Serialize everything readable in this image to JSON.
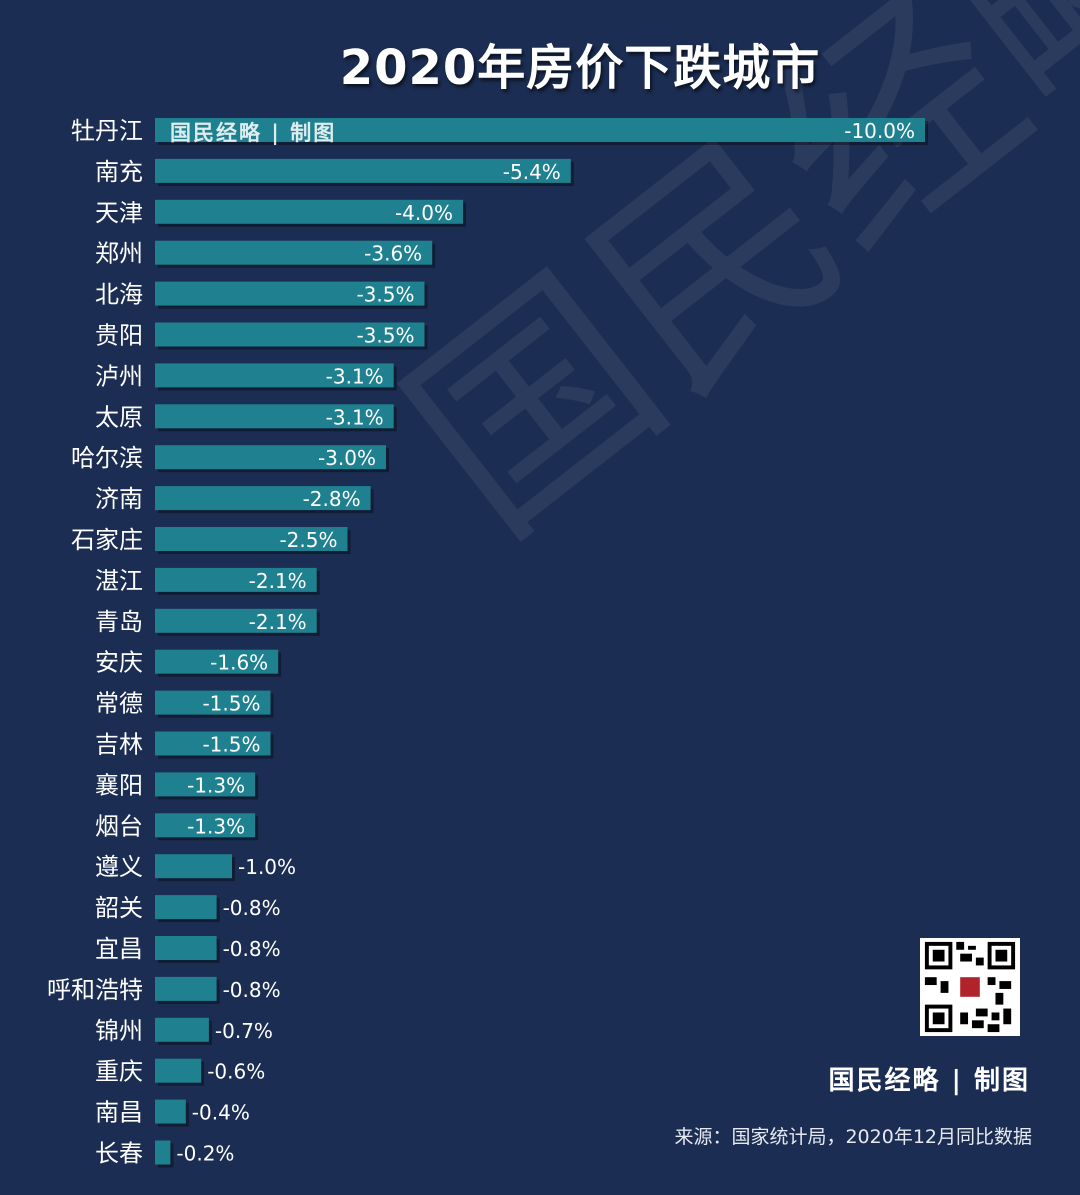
{
  "title": "2020年房价下跌城市",
  "watermark": "国民经略",
  "brand_tag": "国民经略 | 制图",
  "brand_footer": "国民经略 | 制图",
  "source": "来源：国家统计局，2020年12月同比数据",
  "qr_icon": "qr-code-icon",
  "colors": {
    "background": "#1b2d52",
    "bar": "#1f8090",
    "text": "#ffffff"
  },
  "chart_data": {
    "type": "bar",
    "orientation": "horizontal",
    "title": "2020年房价下跌城市",
    "unit": "%",
    "categories": [
      "牡丹江",
      "南充",
      "天津",
      "郑州",
      "北海",
      "贵阳",
      "泸州",
      "太原",
      "哈尔滨",
      "济南",
      "石家庄",
      "湛江",
      "青岛",
      "安庆",
      "常德",
      "吉林",
      "襄阳",
      "烟台",
      "遵义",
      "韶关",
      "宜昌",
      "呼和浩特",
      "锦州",
      "重庆",
      "南昌",
      "长春"
    ],
    "values": [
      -10.0,
      -5.4,
      -4.0,
      -3.6,
      -3.5,
      -3.5,
      -3.1,
      -3.1,
      -3.0,
      -2.8,
      -2.5,
      -2.1,
      -2.1,
      -1.6,
      -1.5,
      -1.5,
      -1.3,
      -1.3,
      -1.0,
      -0.8,
      -0.8,
      -0.8,
      -0.7,
      -0.6,
      -0.4,
      -0.2
    ],
    "value_labels": [
      "-10.0%",
      "-5.4%",
      "-4.0%",
      "-3.6%",
      "-3.5%",
      "-3.5%",
      "-3.1%",
      "-3.1%",
      "-3.0%",
      "-2.8%",
      "-2.5%",
      "-2.1%",
      "-2.1%",
      "-1.6%",
      "-1.5%",
      "-1.5%",
      "-1.3%",
      "-1.3%",
      "-1.0%",
      "-0.8%",
      "-0.8%",
      "-0.8%",
      "-0.7%",
      "-0.6%",
      "-0.4%",
      "-0.2%"
    ],
    "xlim": [
      0,
      -10.0
    ],
    "grid": false,
    "legend": "none"
  }
}
